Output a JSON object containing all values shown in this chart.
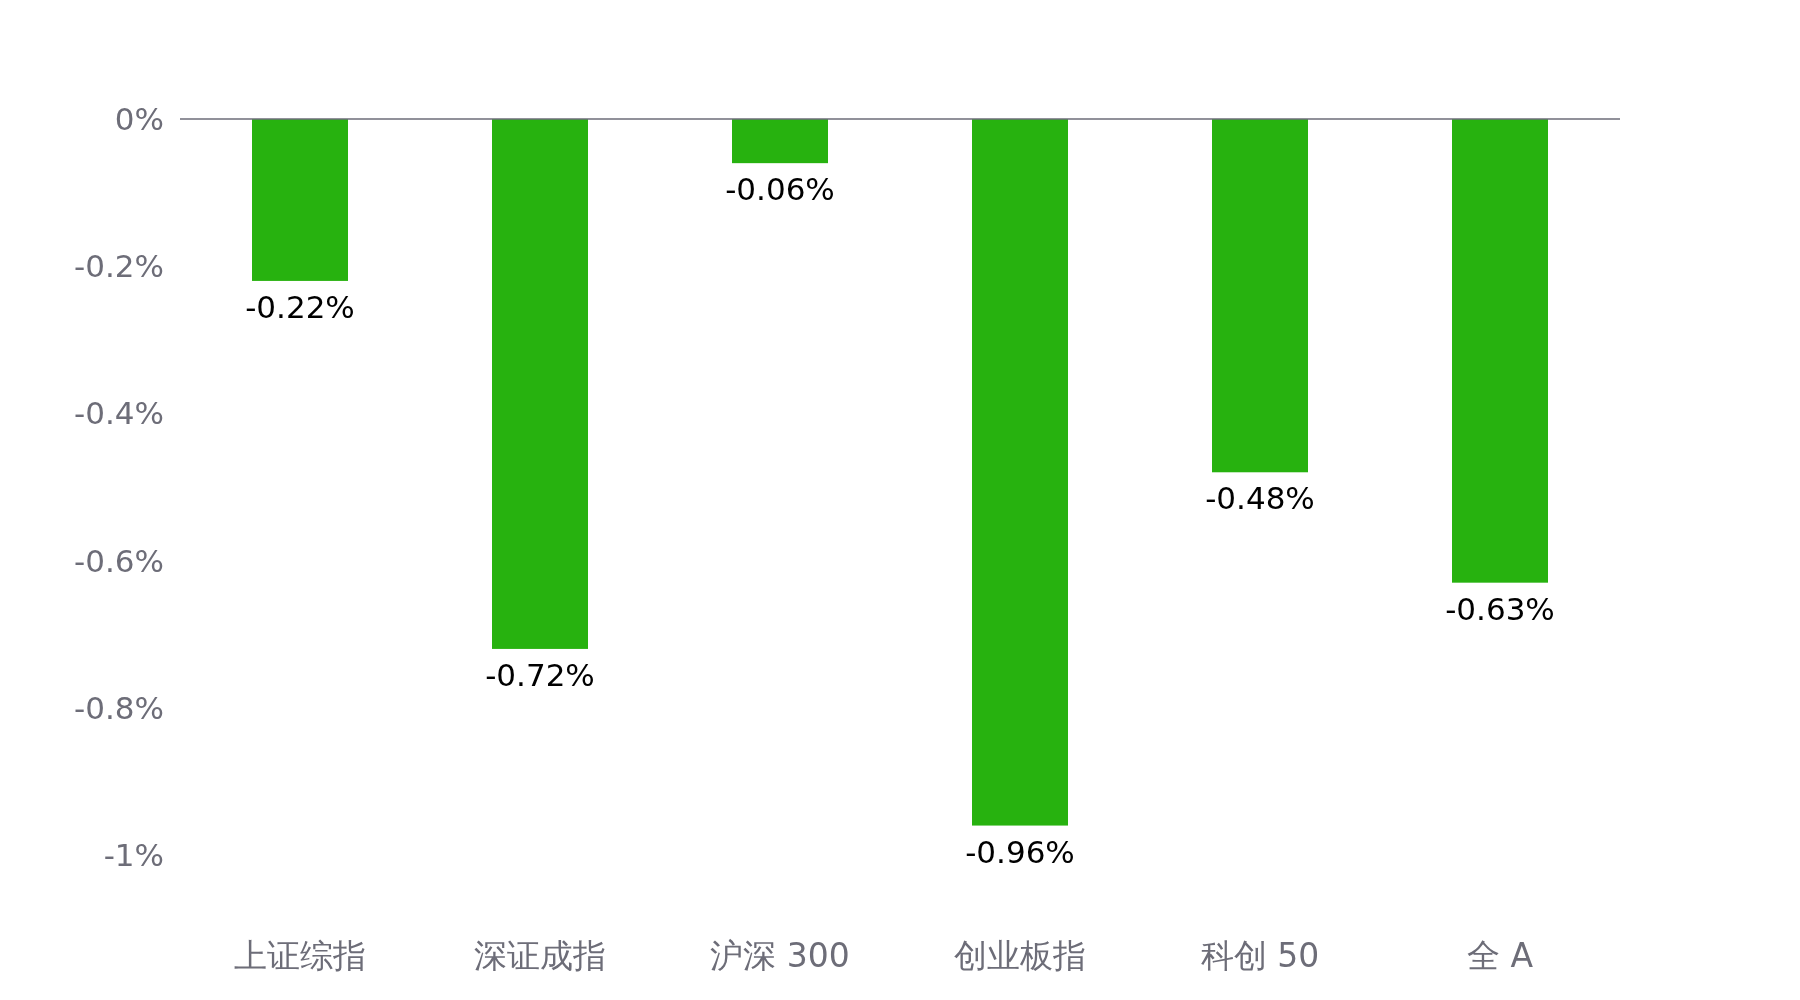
{
  "chart_data": {
    "type": "bar",
    "categories": [
      "上证综指",
      "深证成指",
      "沪深 300",
      "创业板指",
      "科创 50",
      "全 A"
    ],
    "values": [
      -0.22,
      -0.72,
      -0.06,
      -0.96,
      -0.48,
      -0.63
    ],
    "value_labels": [
      "-0.22%",
      "-0.72%",
      "-0.06%",
      "-0.96%",
      "-0.48%",
      "-0.63%"
    ],
    "color": "#27b20f",
    "ylim": [
      -1,
      0
    ],
    "yticks": [
      {
        "value": 0,
        "label": "0%"
      },
      {
        "value": -0.2,
        "label": "-0.2%"
      },
      {
        "value": -0.4,
        "label": "-0.4%"
      },
      {
        "value": -0.6,
        "label": "-0.6%"
      },
      {
        "value": -0.8,
        "label": "-0.8%"
      },
      {
        "value": -1,
        "label": "-1%"
      }
    ],
    "grid": false
  }
}
